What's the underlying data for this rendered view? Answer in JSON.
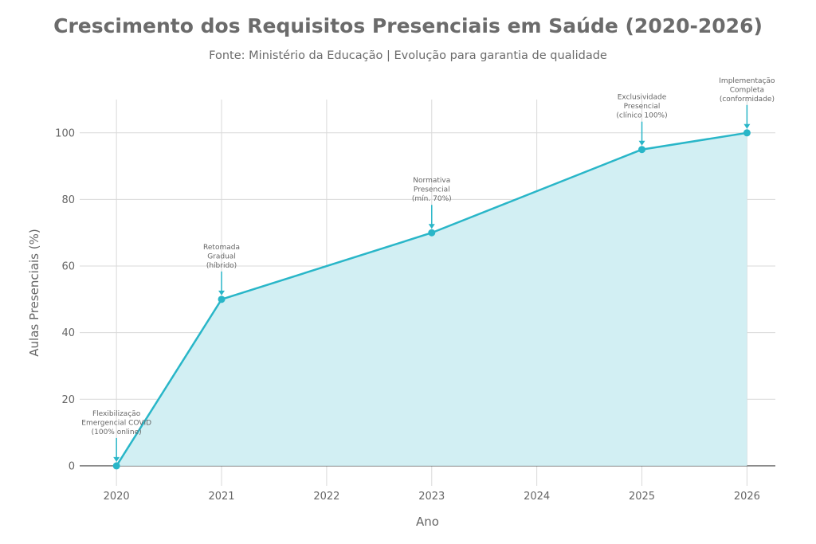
{
  "chart_data": {
    "type": "area",
    "title": "Crescimento dos Requisitos Presenciais em Saúde (2020-2026)",
    "subtitle": "Fonte: Ministério da Educação | Evolução para garantia de qualidade",
    "xlabel": "Ano",
    "ylabel": "Aulas Presenciais (%)",
    "x": [
      2020,
      2021,
      2023,
      2025,
      2026
    ],
    "y": [
      0,
      50,
      70,
      95,
      100
    ],
    "xlim": [
      2019.65,
      2026.27
    ],
    "ylim": [
      -6,
      110
    ],
    "xticks": [
      2020,
      2021,
      2022,
      2023,
      2024,
      2025,
      2026
    ],
    "yticks": [
      0,
      20,
      40,
      60,
      80,
      100
    ],
    "grid": true,
    "colors": {
      "line": "#29b6c8",
      "fill": "#d2eff3",
      "grid": "#d9d9d9",
      "zeroline": "#555555"
    },
    "annotations": [
      {
        "x": 2020,
        "y": 0,
        "lines": [
          "Flexibilização",
          "Emergencial COVID",
          "(100% online)"
        ]
      },
      {
        "x": 2021,
        "y": 50,
        "lines": [
          "Retomada",
          "Gradual",
          "(híbrido)"
        ]
      },
      {
        "x": 2023,
        "y": 70,
        "lines": [
          "Normativa",
          "Presencial",
          "(mín. 70%)"
        ]
      },
      {
        "x": 2025,
        "y": 95,
        "lines": [
          "Exclusividade",
          "Presencial",
          "(clínico 100%)"
        ]
      },
      {
        "x": 2026,
        "y": 100,
        "lines": [
          "Implementação",
          "Completa",
          "(conformidade)"
        ]
      }
    ]
  }
}
